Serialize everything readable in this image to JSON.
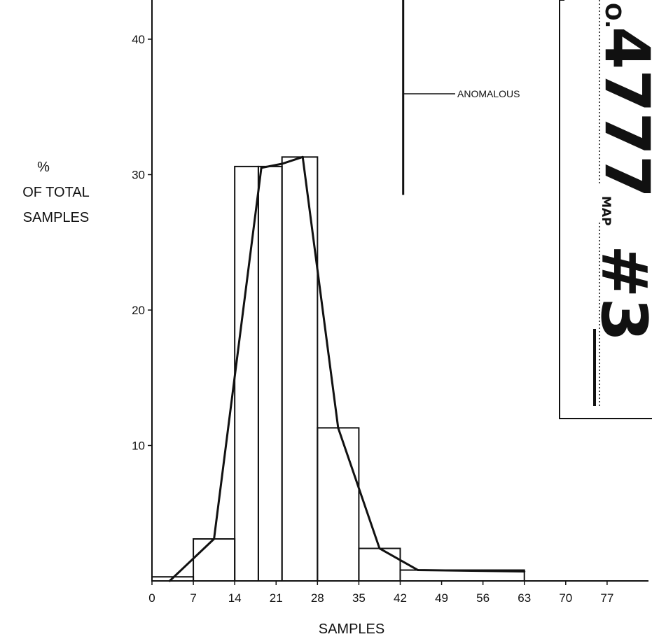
{
  "chart_data": {
    "type": "bar",
    "subtype": "histogram with frequency polygon",
    "xlabel": "SAMPLES",
    "ylabel_lines": [
      "%",
      "OF TOTAL",
      "SAMPLES"
    ],
    "xlim": [
      0,
      84
    ],
    "ylim": [
      0,
      43
    ],
    "x_ticks": [
      0,
      7,
      14,
      21,
      28,
      35,
      42,
      49,
      56,
      63,
      70,
      77
    ],
    "y_ticks": [
      10,
      20,
      30,
      40
    ],
    "histogram_bins": [
      {
        "x0": 0,
        "x1": 7,
        "value": 0.3
      },
      {
        "x0": 7,
        "x1": 14,
        "value": 3.1
      },
      {
        "x0": 14,
        "x1": 18,
        "value": 30.6
      },
      {
        "x0": 18,
        "x1": 22,
        "value": 30.6
      },
      {
        "x0": 22,
        "x1": 28,
        "value": 31.3
      },
      {
        "x0": 28,
        "x1": 35,
        "value": 11.3
      },
      {
        "x0": 35,
        "x1": 42,
        "value": 2.4
      },
      {
        "x0": 42,
        "x1": 63,
        "value": 0.8
      }
    ],
    "polygon": {
      "x": [
        3,
        10.5,
        18.5,
        22,
        25.5,
        31.5,
        38.5,
        45,
        63
      ],
      "y": [
        0,
        3.1,
        30.5,
        30.8,
        31.3,
        11.3,
        2.4,
        0.8,
        0.7
      ]
    },
    "annotation": {
      "text": "ANOMALOUS",
      "x": 42.5,
      "y_range": [
        28.5,
        43
      ]
    },
    "grid": false,
    "legend": "none"
  },
  "stamp": {
    "number_prefix": "O.",
    "number": "4777",
    "map_label": "MAP",
    "map_number": "#3"
  }
}
